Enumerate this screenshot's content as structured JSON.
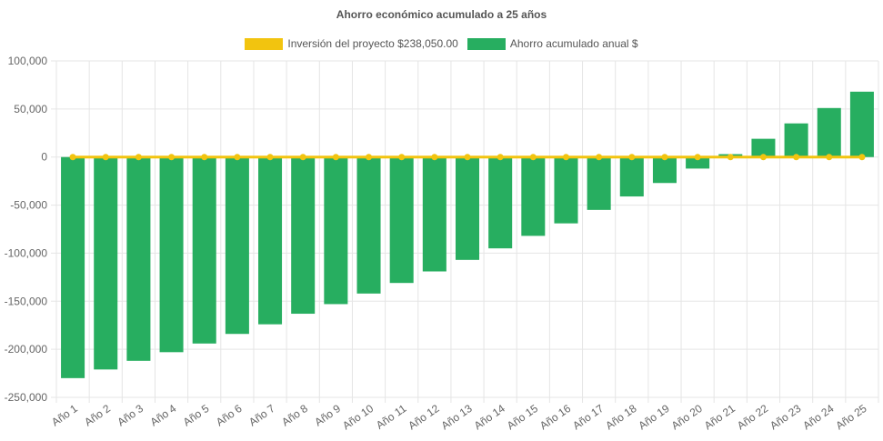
{
  "colors": {
    "investment_line": "#F2C40F",
    "savings_bar": "#27AE60",
    "grid": "#E5E5E5",
    "axis_text": "#666666"
  },
  "chart_data": {
    "type": "bar",
    "title": "Ahorro económico acumulado a 25 años",
    "legend_position": "top",
    "grid": true,
    "categories": [
      "Año 1",
      "Año 2",
      "Año 3",
      "Año 4",
      "Año 5",
      "Año 6",
      "Año 7",
      "Año 8",
      "Año 9",
      "Año 10",
      "Año 11",
      "Año 12",
      "Año 13",
      "Año 14",
      "Año 15",
      "Año 16",
      "Año 17",
      "Año 18",
      "Año 19",
      "Año 20",
      "Año 21",
      "Año 22",
      "Año 23",
      "Año 24",
      "Año 25"
    ],
    "ylim": [
      -250000,
      100000
    ],
    "yticks": [
      100000,
      50000,
      0,
      -50000,
      -100000,
      -150000,
      -200000,
      -250000
    ],
    "ytick_labels": [
      "100,000",
      "50,000",
      "0",
      "-50,000",
      "-100,000",
      "-150,000",
      "-200,000",
      "-250,000"
    ],
    "series": [
      {
        "name": "Inversión del proyecto $238,050.00",
        "type": "line",
        "values": [
          0,
          0,
          0,
          0,
          0,
          0,
          0,
          0,
          0,
          0,
          0,
          0,
          0,
          0,
          0,
          0,
          0,
          0,
          0,
          0,
          0,
          0,
          0,
          0,
          0
        ]
      },
      {
        "name": "Ahorro acumulado anual $",
        "type": "bar",
        "values": [
          -230000,
          -221000,
          -212000,
          -203000,
          -194000,
          -184000,
          -174000,
          -163000,
          -153000,
          -142000,
          -131000,
          -119000,
          -107000,
          -95000,
          -82000,
          -69000,
          -55000,
          -41000,
          -27000,
          -12000,
          3000,
          19000,
          35000,
          51000,
          68000
        ]
      }
    ]
  }
}
